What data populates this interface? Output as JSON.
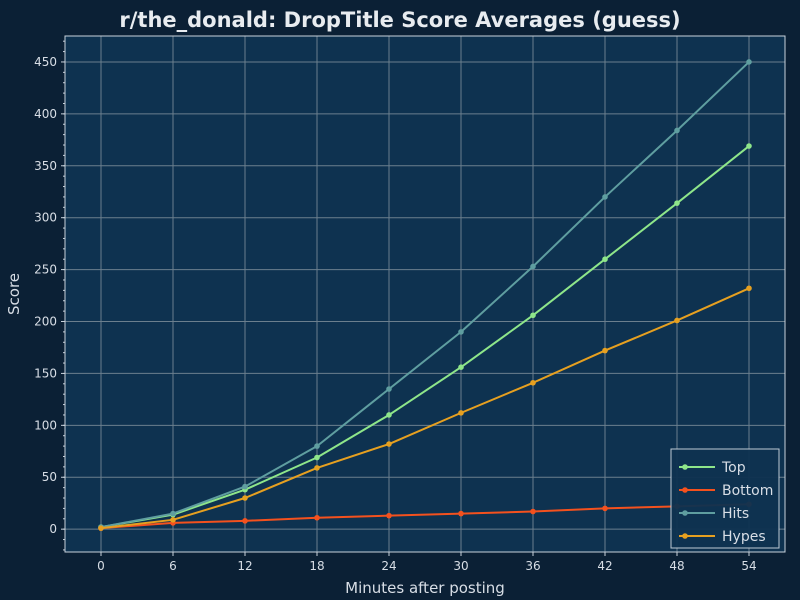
{
  "chart_data": {
    "type": "line",
    "title": "r/the_donald: DropTitle Score Averages (guess)",
    "xlabel": "Minutes after posting",
    "ylabel": "Score",
    "x": [
      0,
      6,
      12,
      18,
      24,
      30,
      36,
      42,
      48,
      54
    ],
    "xlim": [
      -3,
      57
    ],
    "ylim": [
      -22,
      475
    ],
    "xticks": [
      0,
      6,
      12,
      18,
      24,
      30,
      36,
      42,
      48,
      54
    ],
    "yticks": [
      0,
      50,
      100,
      150,
      200,
      250,
      300,
      350,
      400,
      450
    ],
    "grid": true,
    "legend_position": "bottom-right",
    "series": [
      {
        "name": "Top",
        "color": "#8ee68a",
        "values": [
          2,
          14,
          38,
          69,
          110,
          156,
          206,
          260,
          314,
          369
        ]
      },
      {
        "name": "Bottom",
        "color": "#f4511e",
        "values": [
          1,
          6,
          8,
          11,
          13,
          15,
          17,
          20,
          22,
          24
        ]
      },
      {
        "name": "Hits",
        "color": "#5f9ea0",
        "values": [
          2,
          15,
          41,
          80,
          135,
          190,
          253,
          320,
          384,
          450
        ]
      },
      {
        "name": "Hypes",
        "color": "#e6a020",
        "values": [
          1,
          9,
          30,
          59,
          82,
          112,
          141,
          172,
          201,
          232
        ]
      }
    ]
  }
}
